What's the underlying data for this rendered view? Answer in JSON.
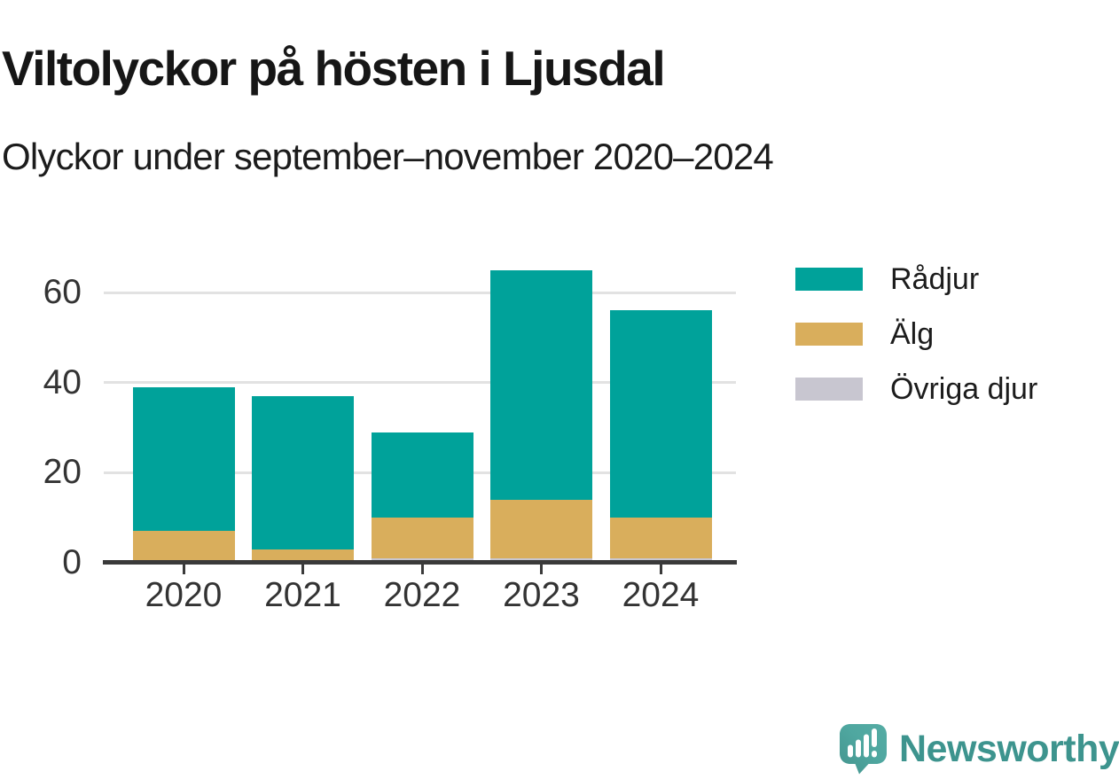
{
  "title": "Viltolyckor på hösten i Ljusdal",
  "subtitle": "Olyckor under september–november 2020–2024",
  "chart_data": {
    "type": "bar",
    "stacked": true,
    "title": "Viltolyckor på hösten i Ljusdal",
    "subtitle": "Olyckor under september–november 2020–2024",
    "categories": [
      "2020",
      "2021",
      "2022",
      "2023",
      "2024"
    ],
    "series": [
      {
        "name": "Rådjur",
        "color": "#00A29A",
        "values": [
          32,
          34,
          19,
          51,
          46
        ]
      },
      {
        "name": "Älg",
        "color": "#D9AE5C",
        "values": [
          7,
          3,
          9,
          13,
          9
        ]
      },
      {
        "name": "Övriga djur",
        "color": "#C8C6D0",
        "values": [
          0,
          0,
          1,
          1,
          1
        ]
      }
    ],
    "stack_order_bottom_to_top": [
      "Övriga djur",
      "Älg",
      "Rådjur"
    ],
    "totals": [
      39,
      37,
      29,
      65,
      56
    ],
    "xlabel": "",
    "ylabel": "",
    "y_ticks": [
      0,
      20,
      40,
      60
    ],
    "ylim": [
      0,
      72
    ],
    "grid": true,
    "legend_position": "right"
  },
  "y_axis": {
    "tick_labels": [
      "0",
      "20",
      "40",
      "60"
    ]
  },
  "x_axis": {
    "tick_labels": [
      "2020",
      "2021",
      "2022",
      "2023",
      "2024"
    ]
  },
  "legend": {
    "items": [
      {
        "label": "Rådjur",
        "color": "#00A29A"
      },
      {
        "label": "Älg",
        "color": "#D9AE5C"
      },
      {
        "label": "Övriga djur",
        "color": "#C8C6D0"
      }
    ]
  },
  "colors": {
    "accent_teal": "#00A29A",
    "accent_gold": "#D9AE5C",
    "accent_gray": "#C8C6D0",
    "axis": "#3a3a3a",
    "gridline": "#e2e2e2",
    "brand_teal": "#3D948E"
  },
  "footer": {
    "brand": "Newsworthy"
  }
}
